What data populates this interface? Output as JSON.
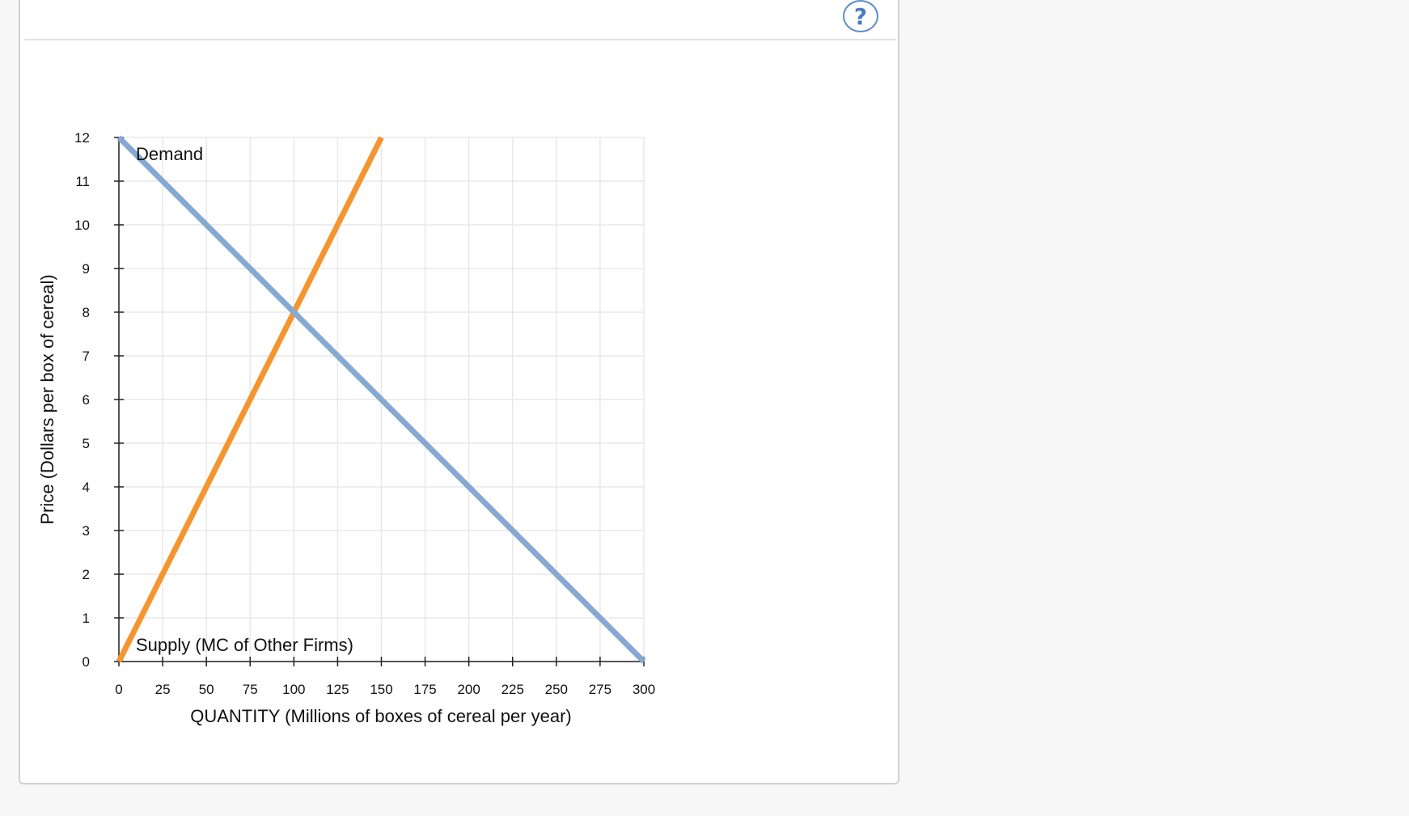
{
  "help": {
    "glyph": "?",
    "icon": "help-circle-icon"
  },
  "chart_data": {
    "type": "line",
    "xlabel": "QUANTITY (Millions of boxes of cereal per year)",
    "ylabel": "Price (Dollars per box of cereal)",
    "xlim": [
      0,
      300
    ],
    "ylim": [
      0,
      12
    ],
    "xticks": [
      0,
      25,
      50,
      75,
      100,
      125,
      150,
      175,
      200,
      225,
      250,
      275,
      300
    ],
    "yticks": [
      0,
      1,
      2,
      3,
      4,
      5,
      6,
      7,
      8,
      9,
      10,
      11,
      12
    ],
    "grid": true,
    "series": [
      {
        "name": "Demand",
        "color": "#86a9d2",
        "points": [
          [
            0,
            12
          ],
          [
            300,
            0
          ]
        ]
      },
      {
        "name": "Supply (MC of Other Firms)",
        "color": "#f5952f",
        "points": [
          [
            0,
            0
          ],
          [
            150,
            12
          ]
        ]
      }
    ]
  }
}
